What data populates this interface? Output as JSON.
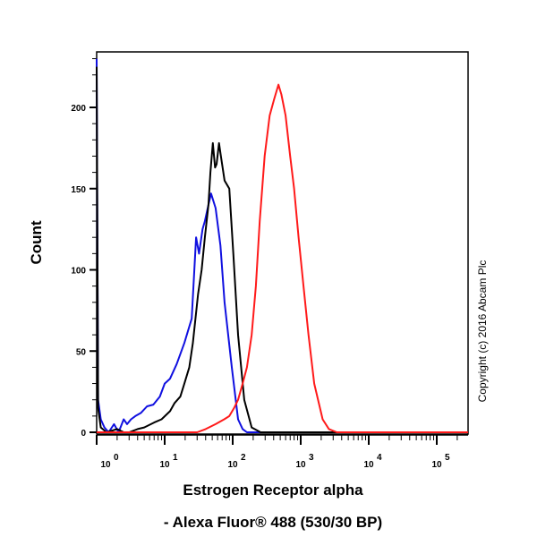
{
  "chart_data": {
    "type": "line",
    "title": "",
    "xlabel": "Estrogen Receptor alpha",
    "xlabel_line2": "- Alexa Fluor® 488 (530/30 BP)",
    "ylabel": "Count",
    "xscale": "log",
    "xlim": [
      1,
      300000
    ],
    "ylim": [
      0,
      234
    ],
    "grid": false,
    "legend": "none",
    "x_ticks": [
      1,
      10,
      100,
      1000,
      10000,
      100000
    ],
    "x_tick_labels": [
      {
        "base": "10",
        "exp": "0"
      },
      {
        "base": "10",
        "exp": "1"
      },
      {
        "base": "10",
        "exp": "2"
      },
      {
        "base": "10",
        "exp": "3"
      },
      {
        "base": "10",
        "exp": "4"
      },
      {
        "base": "10",
        "exp": "5"
      }
    ],
    "y_ticks": [
      0,
      50,
      100,
      150,
      200
    ],
    "y_tick_labels": [
      "0",
      "50",
      "100",
      "150",
      "200"
    ],
    "series": [
      {
        "color": "#1010e0",
        "x": [
          1,
          1.05,
          1.15,
          1.3,
          1.5,
          1.8,
          2.1,
          2.5,
          2.8,
          3.2,
          3.7,
          4.5,
          5.5,
          6.8,
          8.5,
          10,
          12,
          15,
          19.5,
          25,
          29,
          32,
          36,
          39,
          44,
          48,
          56,
          66,
          76,
          97,
          120,
          140,
          162,
          250,
          300000
        ],
        "y": [
          230,
          20,
          8,
          3,
          0,
          5,
          0,
          8,
          5,
          8,
          10,
          12,
          16,
          17,
          22,
          30,
          33,
          42,
          55,
          70,
          120,
          110,
          125,
          130,
          140,
          147,
          138,
          115,
          80,
          40,
          8,
          2,
          0,
          0,
          0
        ]
      },
      {
        "color": "#000000",
        "x": [
          1,
          1.05,
          1.15,
          1.4,
          2,
          2.5,
          3,
          4,
          5,
          7,
          9,
          12,
          14,
          17,
          19.5,
          23,
          26,
          31,
          35,
          39,
          44,
          47,
          51,
          55,
          58,
          63,
          67,
          76,
          89,
          102,
          120,
          148,
          190,
          257,
          300000
        ],
        "y": [
          225,
          15,
          3,
          0,
          2,
          0,
          0,
          2,
          3,
          6,
          8,
          13,
          18,
          22,
          30,
          40,
          55,
          85,
          100,
          120,
          140,
          160,
          178,
          163,
          165,
          178,
          170,
          155,
          150,
          110,
          60,
          20,
          3,
          0,
          0
        ]
      },
      {
        "color": "#ff1a1a",
        "x": [
          1,
          30,
          40,
          56,
          75,
          89,
          105,
          120,
          140,
          162,
          190,
          219,
          250,
          295,
          350,
          407,
          470,
          520,
          600,
          700,
          800,
          930,
          1100,
          1300,
          1580,
          2100,
          2600,
          3400,
          300000
        ],
        "y": [
          0,
          0,
          2,
          5,
          8,
          10,
          15,
          20,
          30,
          40,
          60,
          90,
          130,
          170,
          195,
          205,
          214,
          208,
          195,
          170,
          150,
          120,
          90,
          60,
          30,
          8,
          2,
          0,
          0
        ]
      }
    ],
    "annotations": [
      "Copyright (c) 2016 Abcam Plc"
    ]
  }
}
